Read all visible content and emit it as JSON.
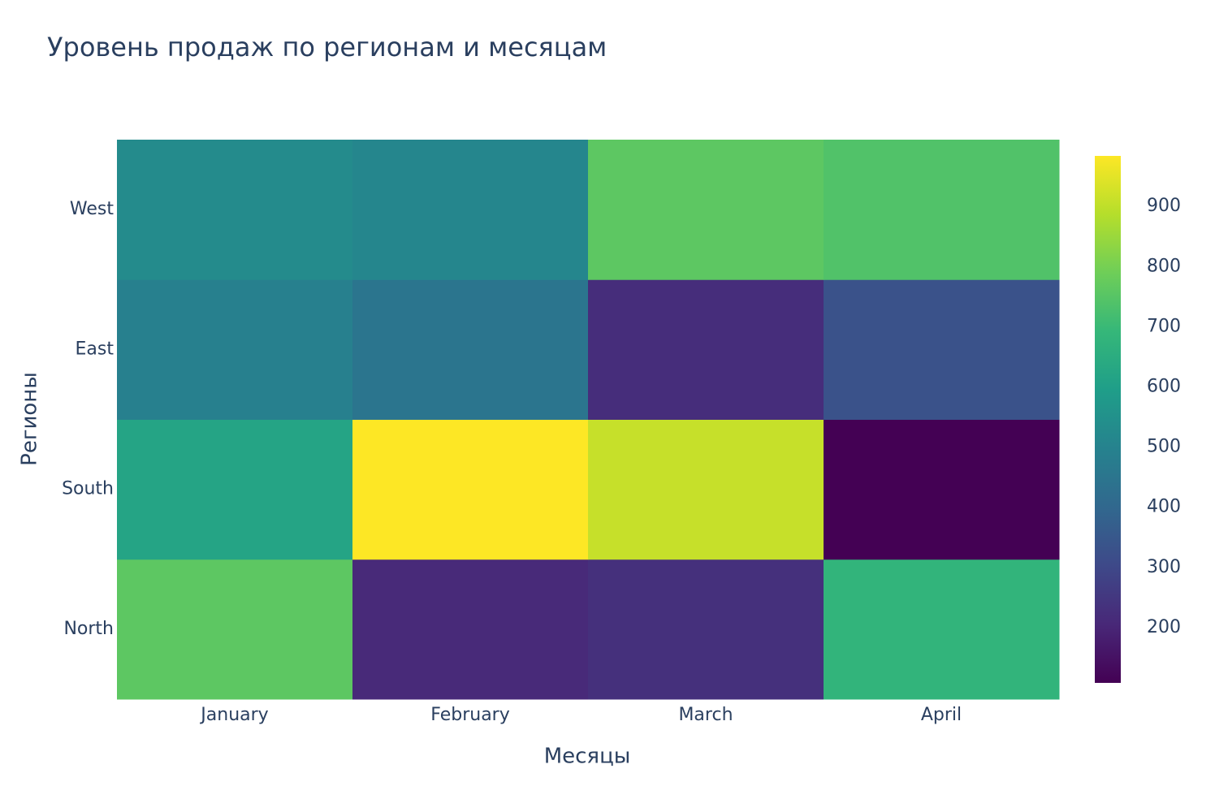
{
  "chart_data": {
    "type": "heatmap",
    "title": "Уровень продаж по регионам и месяцам",
    "x_label": "Месяцы",
    "y_label": "Регионы",
    "x": [
      "January",
      "February",
      "March",
      "April"
    ],
    "y": [
      "North",
      "South",
      "East",
      "West"
    ],
    "z": [
      [
        760,
        210,
        230,
        680
      ],
      [
        620,
        984,
        910,
        108
      ],
      [
        490,
        450,
        220,
        330
      ],
      [
        530,
        510,
        760,
        740
      ]
    ],
    "colorscale": "viridis",
    "colorbar_ticks": [
      200,
      300,
      400,
      500,
      600,
      700,
      800,
      900
    ]
  }
}
